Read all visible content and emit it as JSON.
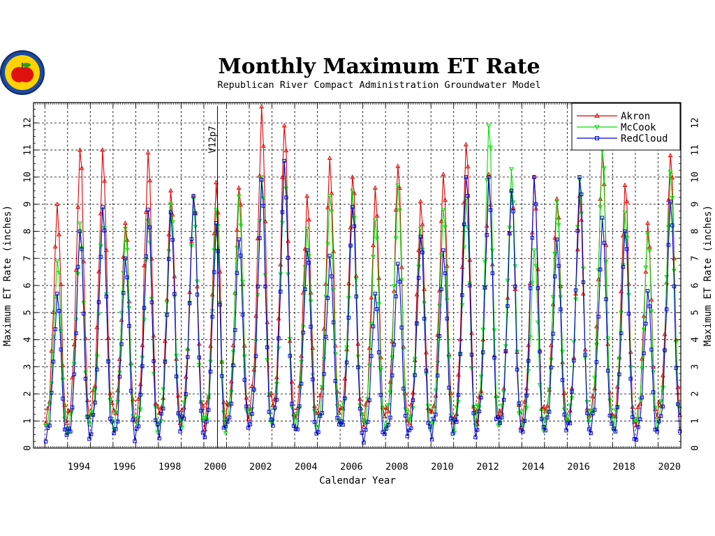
{
  "chart_data": {
    "type": "line",
    "title": "Monthly Maximum ET Rate",
    "subtitle": "Republican River Compact Administration Groundwater Model",
    "xlabel": "Calendar Year",
    "ylabel": "Maximum ET Rate (inches)",
    "xlim": [
      1992.5,
      2021.0
    ],
    "ylim": [
      0,
      12.75
    ],
    "x_ticks": [
      "1994",
      "1996",
      "1998",
      "2000",
      "2002",
      "2004",
      "2006",
      "2008",
      "2010",
      "2012",
      "2014",
      "2016",
      "2018",
      "2020"
    ],
    "y_ticks": [
      "0",
      "1",
      "2",
      "3",
      "4",
      "5",
      "6",
      "7",
      "8",
      "9",
      "10",
      "11",
      "12"
    ],
    "grid": true,
    "legend_position": "top-right",
    "annotation": {
      "text": "V12p7",
      "x": 2000.6
    },
    "colors": {
      "Akron": "#e00000",
      "McCook": "#00e000",
      "RedCloud": "#0000d0"
    },
    "years": [
      1993,
      1994,
      1995,
      1996,
      1997,
      1998,
      1999,
      2000,
      2001,
      2002,
      2003,
      2004,
      2005,
      2006,
      2007,
      2008,
      2009,
      2010,
      2011,
      2012,
      2013,
      2014,
      2015,
      2016,
      2017,
      2018,
      2019,
      2020
    ],
    "series": [
      {
        "name": "Akron",
        "marker": "triangle-up",
        "peaks": [
          9.0,
          11.0,
          11.0,
          8.3,
          10.9,
          9.5,
          9.3,
          9.8,
          9.6,
          12.6,
          11.9,
          9.3,
          10.7,
          10.0,
          9.6,
          10.4,
          9.1,
          10.1,
          11.2,
          10.1,
          9.5,
          10.0,
          9.2,
          9.3,
          11.1,
          9.7,
          8.3,
          10.8
        ],
        "winter_min": [
          0.4,
          0.5,
          0.8,
          0.7,
          0.6,
          0.6,
          0.9,
          0.4,
          0.8,
          0.9,
          0.7,
          0.6,
          0.7,
          0.7,
          0.4,
          0.6,
          0.6,
          0.6,
          0.5,
          0.6,
          0.5,
          0.6,
          0.7,
          0.5,
          0.6,
          0.4,
          0.5,
          0.8
        ]
      },
      {
        "name": "McCook",
        "marker": "triangle-down",
        "peaks": [
          6.9,
          8.3,
          8.8,
          8.1,
          8.4,
          9.0,
          9.2,
          8.8,
          9.3,
          10.0,
          10.6,
          8.1,
          9.3,
          9.5,
          8.4,
          9.7,
          8.1,
          8.8,
          9.2,
          11.9,
          10.3,
          7.3,
          9.1,
          9.9,
          11.0,
          8.7,
          7.9,
          10.2
        ],
        "winter_min": [
          0.3,
          0.2,
          0.6,
          0.4,
          0.3,
          0.4,
          0.5,
          0.3,
          0.6,
          0.5,
          0.4,
          0.3,
          0.5,
          0.5,
          0.3,
          0.5,
          0.4,
          0.4,
          0.3,
          0.5,
          0.4,
          0.3,
          0.5,
          0.4,
          0.5,
          0.3,
          0.4,
          0.6
        ]
      },
      {
        "name": "RedCloud",
        "marker": "square",
        "peaks": [
          5.7,
          8.0,
          8.9,
          7.0,
          8.8,
          8.7,
          9.3,
          8.3,
          7.7,
          9.9,
          10.6,
          7.3,
          7.1,
          8.9,
          5.7,
          6.8,
          7.8,
          7.3,
          10.0,
          10.0,
          9.5,
          10.0,
          7.7,
          10.0,
          8.5,
          8.0,
          5.8,
          9.1
        ],
        "winter_min": [
          0.0,
          0.0,
          0.2,
          0.0,
          0.2,
          0.1,
          0.3,
          0.0,
          0.4,
          0.3,
          0.2,
          0.1,
          0.3,
          0.2,
          0.0,
          0.2,
          0.2,
          0.1,
          0.1,
          0.2,
          0.2,
          0.0,
          0.2,
          0.1,
          0.2,
          0.0,
          0.1,
          0.3
        ]
      }
    ]
  }
}
